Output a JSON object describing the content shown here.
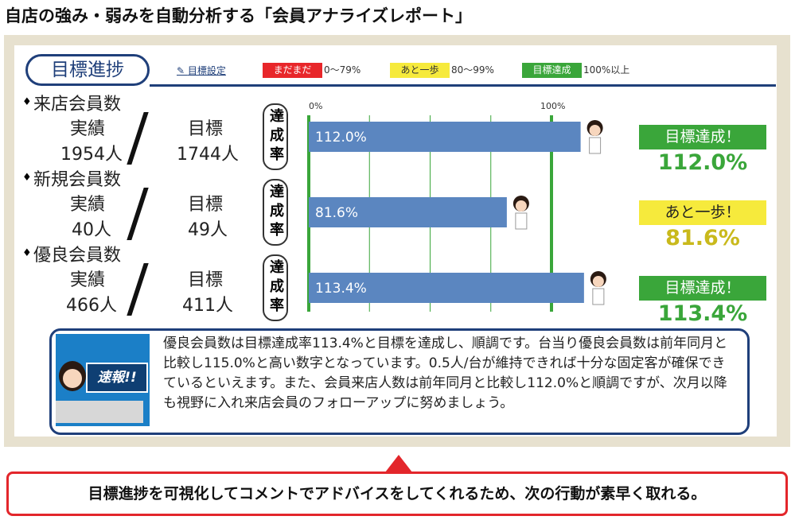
{
  "header": {
    "title": "自店の強み・弱みを自動分析する「会員アナライズレポート」"
  },
  "panel": {
    "title": "目標進捗",
    "settings_link": "目標設定",
    "legend": [
      {
        "label": "まだまだ",
        "range": "0〜79%",
        "color": "#e8262a",
        "text_color": "#ffffff"
      },
      {
        "label": "あと一歩",
        "range": "80〜99%",
        "color": "#f6ea3c",
        "text_color": "#333333"
      },
      {
        "label": "目標達成",
        "range": "100%以上",
        "color": "#3aa63a",
        "text_color": "#ffffff"
      }
    ],
    "xlim": [
      0,
      100
    ],
    "xticks": [
      {
        "value": 0,
        "label": "0%"
      },
      {
        "value": 100,
        "label": "100%"
      }
    ],
    "gridlines": [
      25,
      50,
      75
    ],
    "bar_color": "#5b86c0",
    "rows": [
      {
        "name": "来店会員数",
        "actual_label": "実績",
        "target_label": "目標",
        "actual": "1954人",
        "target": "1744人",
        "rate_title": "達成率",
        "rate": 112.0,
        "rate_label": "112.0%",
        "status": "目標達成！",
        "status_color": "#3aa63a",
        "rate_color": "#3aa63a"
      },
      {
        "name": "新規会員数",
        "actual_label": "実績",
        "target_label": "目標",
        "actual": "40人",
        "target": "49人",
        "rate_title": "達成率",
        "rate": 81.6,
        "rate_label": "81.6%",
        "status": "あと一歩！",
        "status_color": "#f6ea3c",
        "rate_color": "#c9b91c"
      },
      {
        "name": "優良会員数",
        "actual_label": "実績",
        "target_label": "目標",
        "actual": "466人",
        "target": "411人",
        "rate_title": "達成率",
        "rate": 113.4,
        "rate_label": "113.4%",
        "status": "目標達成！",
        "status_color": "#3aa63a",
        "rate_color": "#3aa63a"
      }
    ],
    "comment": {
      "badge": "速報!!",
      "text": "優良会員数は目標達成率113.4%と目標を達成し、順調です。台当り優良会員数は前年同月と比較し115.0%と高い数字となっています。0.5人/台が維持できれば十分な固定客が確保できているといえます。また、会員来店人数は前年同月と比較し112.0%と順調ですが、次月以降も視野に入れ来店会員のフォローアップに努めましょう。"
    }
  },
  "footer": {
    "callout": "目標進捗を可視化してコメントでアドバイスをしてくれるため、次の行動が素早く取れる。"
  }
}
